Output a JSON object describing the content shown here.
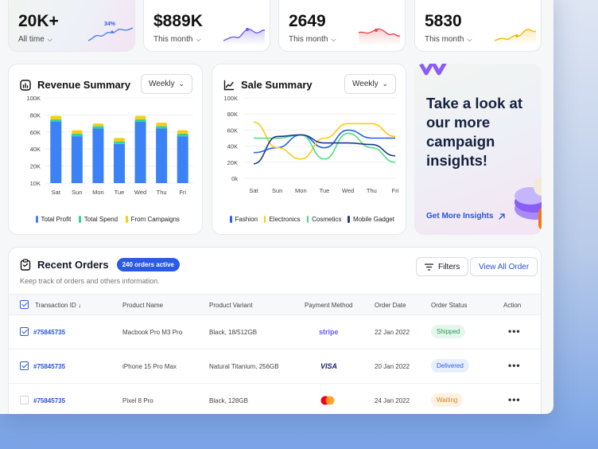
{
  "stats": [
    {
      "value": "20K+",
      "label": "All time",
      "spark_label": "34%",
      "color": "#4f7ef0"
    },
    {
      "value": "$889K",
      "label": "This month",
      "color": "#6d5fe6"
    },
    {
      "value": "2649",
      "label": "This month",
      "color": "#e5484d"
    },
    {
      "value": "5830",
      "label": "This month",
      "color": "#f2b705"
    }
  ],
  "revenue": {
    "title": "Revenue Summary",
    "period": "Weekly",
    "legend": [
      "Total Profit",
      "Total Spend",
      "From Campaigns"
    ],
    "colors": [
      "#3b82f6",
      "#34d399",
      "#facc15"
    ]
  },
  "sales": {
    "title": "Sale Summary",
    "period": "Weekly",
    "legend": [
      "Fashion",
      "Electronics",
      "Cosmetics",
      "Mobile Gadget"
    ],
    "colors": [
      "#2563eb",
      "#facc15",
      "#4ade80",
      "#1e3a8a"
    ]
  },
  "chart_data": [
    {
      "type": "bar",
      "title": "Revenue Summary",
      "categories": [
        "Sat",
        "Sun",
        "Mon",
        "Tue",
        "Wed",
        "Thu",
        "Fri"
      ],
      "yticks": [
        "10K",
        "20K",
        "40K",
        "60K",
        "80K",
        "100K"
      ],
      "ylim": [
        10000,
        100000
      ],
      "stacked": true,
      "series": [
        {
          "name": "Total Profit",
          "values": [
            62000,
            45000,
            54000,
            36000,
            62000,
            54000,
            45000
          ]
        },
        {
          "name": "Total Spend",
          "values": [
            3000,
            3000,
            3000,
            3000,
            3000,
            3000,
            3000
          ]
        },
        {
          "name": "From Campaigns",
          "values": [
            4000,
            4000,
            3000,
            4000,
            4000,
            4000,
            4000
          ]
        }
      ],
      "legend": "bottom"
    },
    {
      "type": "line",
      "title": "Sale Summary",
      "categories": [
        "Sat",
        "Sun",
        "Mon",
        "Tue",
        "Wed",
        "Thu",
        "Fri"
      ],
      "yticks": [
        "0k",
        "20K",
        "40K",
        "60K",
        "80K",
        "100K"
      ],
      "ylim": [
        0,
        100000
      ],
      "series": [
        {
          "name": "Fashion",
          "values": [
            32000,
            38000,
            54000,
            38000,
            60000,
            50000,
            50000
          ]
        },
        {
          "name": "Electronics",
          "values": [
            70000,
            38000,
            24000,
            50000,
            68000,
            68000,
            52000
          ]
        },
        {
          "name": "Cosmetics",
          "values": [
            50000,
            50000,
            54000,
            24000,
            56000,
            38000,
            20000
          ]
        },
        {
          "name": "Mobile Gadget",
          "values": [
            18000,
            52000,
            54000,
            44000,
            44000,
            42000,
            28000
          ]
        }
      ],
      "legend": "bottom"
    }
  ],
  "promo": {
    "headline": "Take a look at our more campaign insights!",
    "link": "Get More Insights"
  },
  "orders": {
    "title": "Recent Orders",
    "badge": "240 orders active",
    "subtitle": "Keep track of orders and others information.",
    "filters_label": "Filters",
    "view_all_label": "View All Order",
    "columns": [
      "Transaction ID",
      "Product Name",
      "Product Variant",
      "Payment Method",
      "Order Date",
      "Order Status",
      "Action"
    ],
    "rows": [
      {
        "id": "#75845735",
        "product": "Macbook Pro M3 Pro",
        "variant": "Black, 18/512GB",
        "payment": "stripe",
        "date": "22 Jan 2022",
        "status": "Shipped",
        "checked": true
      },
      {
        "id": "#75845735",
        "product": "iPhone 15 Pro Max",
        "variant": "Natural Titanium, 256GB",
        "payment": "VISA",
        "date": "20 Jan 2022",
        "status": "Delivered",
        "checked": true
      },
      {
        "id": "#75845735",
        "product": "Pixel 8 Pro",
        "variant": "Black, 128GB",
        "payment": "mastercard",
        "date": "24 Jan 2022",
        "status": "Waiting",
        "checked": false
      }
    ]
  }
}
